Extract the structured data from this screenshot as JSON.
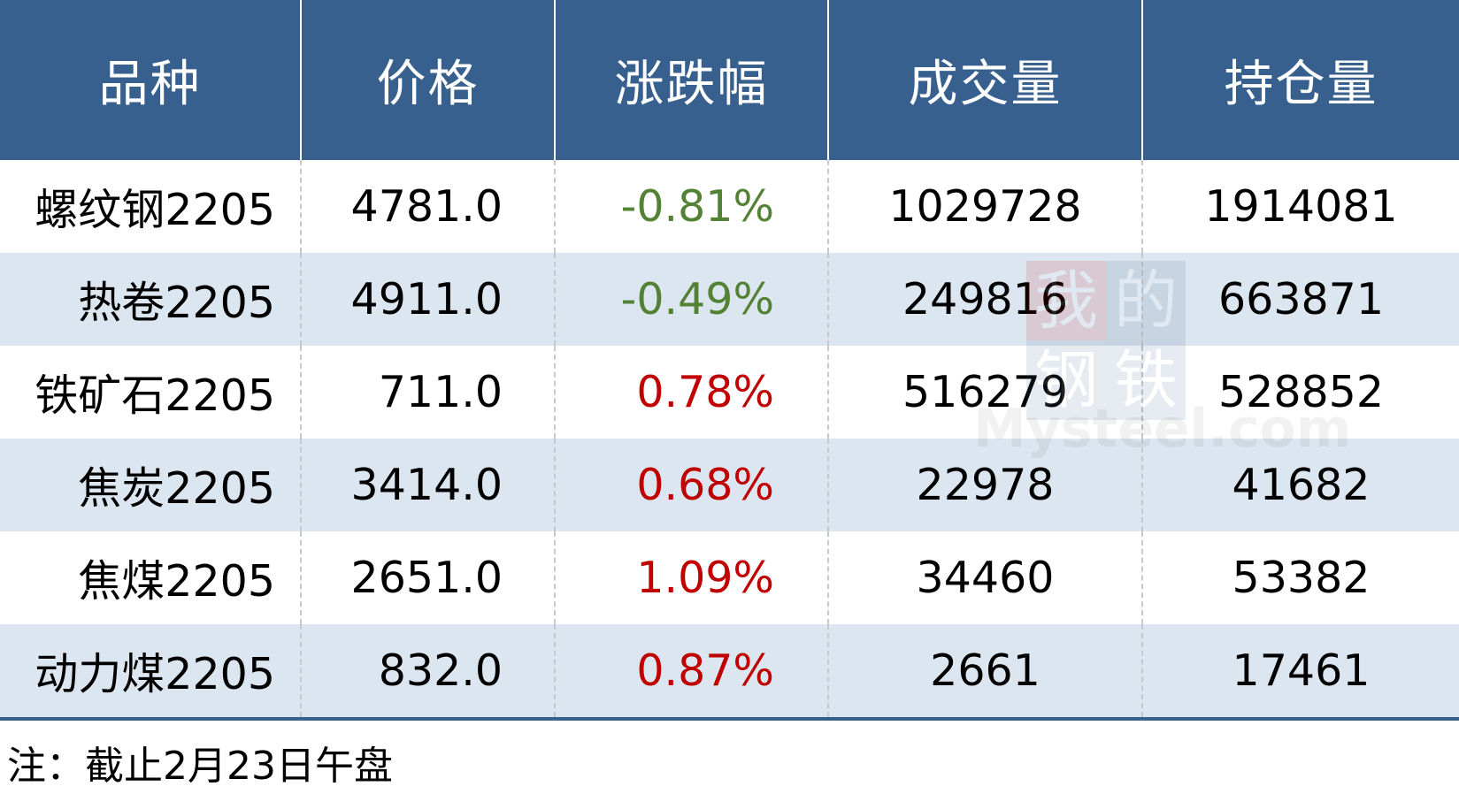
{
  "headers": [
    "品种",
    "价格",
    "涨跌幅",
    "成交量",
    "持仓量"
  ],
  "rows": [
    {
      "name": "螺纹钢2205",
      "price": "4781.0",
      "change": "-0.81%",
      "direction": "down",
      "volume": "1029728",
      "open_interest": "1914081"
    },
    {
      "name": "热卷2205",
      "price": "4911.0",
      "change": "-0.49%",
      "direction": "down",
      "volume": "249816",
      "open_interest": "663871"
    },
    {
      "name": "铁矿石2205",
      "price": "711.0",
      "change": "0.78%",
      "direction": "up",
      "volume": "516279",
      "open_interest": "528852"
    },
    {
      "name": "焦炭2205",
      "price": "3414.0",
      "change": "0.68%",
      "direction": "up",
      "volume": "22978",
      "open_interest": "41682"
    },
    {
      "name": "焦煤2205",
      "price": "2651.0",
      "change": "1.09%",
      "direction": "up",
      "volume": "34460",
      "open_interest": "53382"
    },
    {
      "name": "动力煤2205",
      "price": "832.0",
      "change": "0.87%",
      "direction": "up",
      "volume": "2661",
      "open_interest": "17461"
    }
  ],
  "note": "注：截止2月23日午盘",
  "watermark": {
    "chars": [
      "我",
      "的",
      "钢",
      "铁"
    ],
    "text": "Mysteel.com"
  },
  "colors": {
    "header": "#37608f",
    "alt_row": "#dce6f0",
    "down": "#548235",
    "up": "#c00000"
  }
}
